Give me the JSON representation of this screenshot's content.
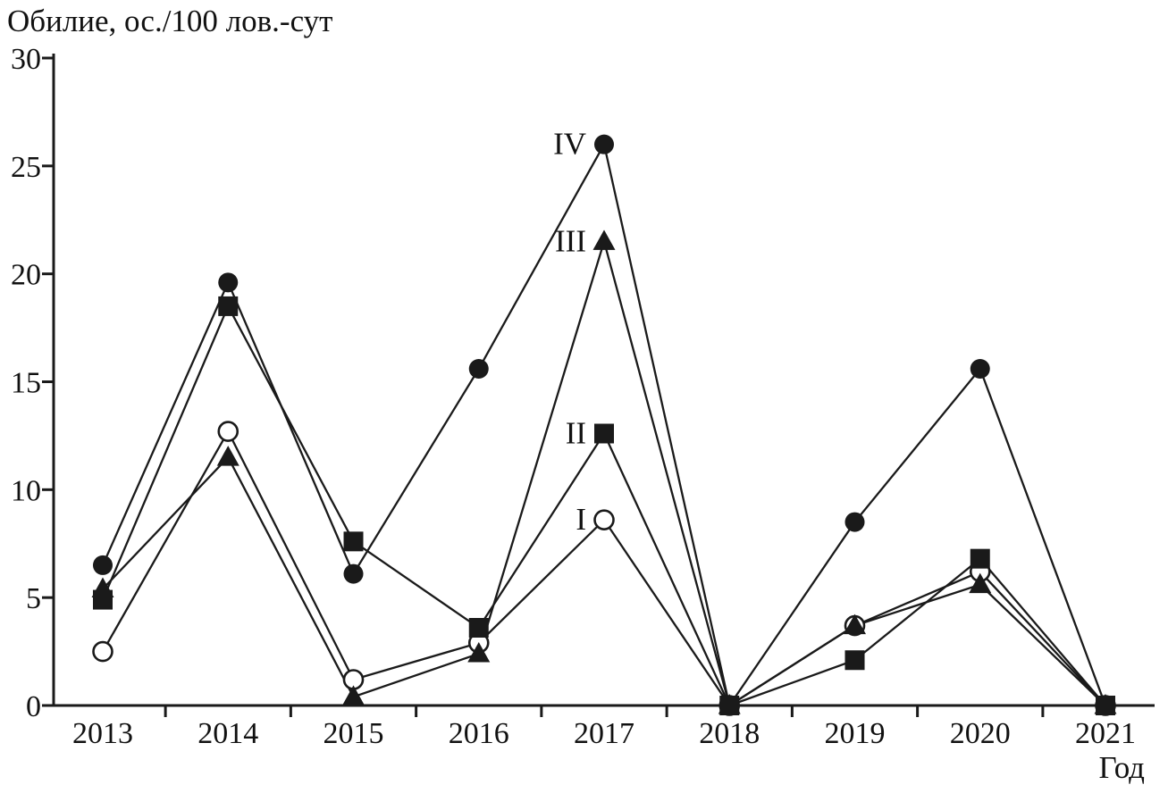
{
  "chart_data": {
    "type": "line",
    "ylabel": "Обилие, ос./100 лов.-сут",
    "xlabel": "Год",
    "ylim": [
      0,
      30
    ],
    "yticks": [
      0,
      5,
      10,
      15,
      20,
      25,
      30
    ],
    "categories": [
      2013,
      2014,
      2015,
      2016,
      2017,
      2018,
      2019,
      2020,
      2021
    ],
    "grid": false,
    "legend_position": "inline-annotations",
    "line_color": "#1a1a1a",
    "background_color": "#ffffff",
    "series": [
      {
        "name": "I",
        "marker": "open-circle",
        "color": "#1a1a1a",
        "values": [
          2.5,
          12.7,
          1.2,
          2.9,
          8.6,
          0,
          3.7,
          6.2,
          0
        ]
      },
      {
        "name": "II",
        "marker": "filled-square",
        "color": "#1a1a1a",
        "values": [
          4.9,
          18.5,
          7.6,
          3.6,
          12.6,
          0,
          2.1,
          6.8,
          0
        ]
      },
      {
        "name": "III",
        "marker": "filled-triangle",
        "color": "#1a1a1a",
        "values": [
          5.4,
          11.5,
          0.4,
          2.4,
          21.5,
          0,
          3.7,
          5.6,
          0
        ]
      },
      {
        "name": "IV",
        "marker": "filled-circle",
        "color": "#1a1a1a",
        "values": [
          6.5,
          19.6,
          6.1,
          15.6,
          26.0,
          0,
          8.5,
          15.6,
          0
        ]
      }
    ],
    "annotations": [
      {
        "text": "I",
        "series": "I",
        "x": 2017
      },
      {
        "text": "II",
        "series": "II",
        "x": 2017
      },
      {
        "text": "III",
        "series": "III",
        "x": 2017
      },
      {
        "text": "IV",
        "series": "IV",
        "x": 2017
      }
    ]
  }
}
